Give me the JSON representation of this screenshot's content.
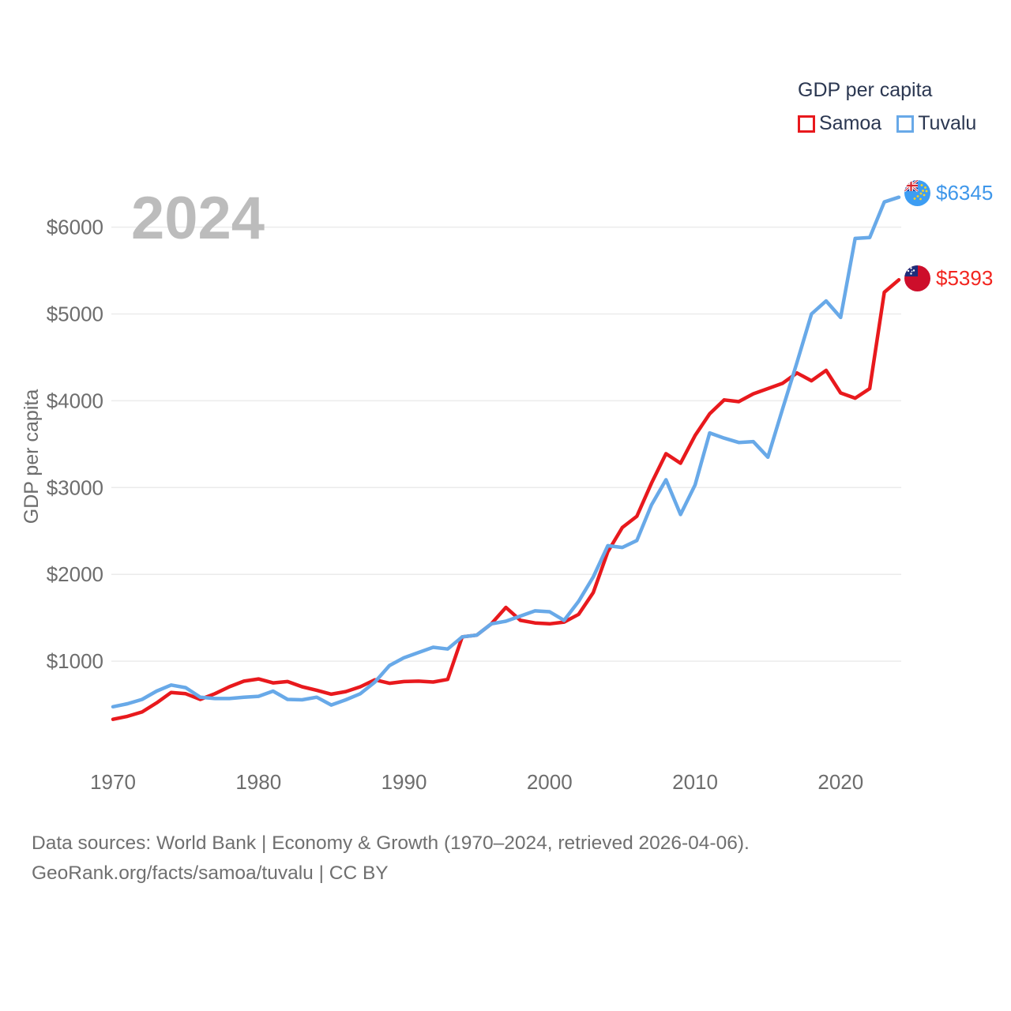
{
  "legend": {
    "title": "GDP per capita",
    "items": [
      {
        "label": "Samoa",
        "color": "#e8191d"
      },
      {
        "label": "Tuvalu",
        "color": "#68a9e8"
      }
    ]
  },
  "watermark": {
    "text": "2024",
    "color": "#bcbcbc"
  },
  "end_labels": [
    {
      "series": "Tuvalu",
      "value": "$6345",
      "color": "#3f97ea",
      "flag": "tuvalu-flag"
    },
    {
      "series": "Samoa",
      "value": "$5393",
      "color": "#f2251f",
      "flag": "samoa-flag"
    }
  ],
  "footer": {
    "line1": "Data sources: World Bank | Economy & Growth (1970–2024, retrieved 2026-04-06).",
    "line2": "GeoRank.org/facts/samoa/tuvalu | CC BY"
  },
  "chart_data": {
    "type": "line",
    "title": "GDP per capita",
    "xlabel": "",
    "ylabel": "GDP per capita",
    "grid": true,
    "grid_color": "#ebebeb",
    "axis_text_color": "#6d6d6d",
    "xlim": [
      1970,
      2024
    ],
    "ylim": [
      0,
      6600
    ],
    "xticks": [
      1970,
      1980,
      1990,
      2000,
      2010,
      2020
    ],
    "yticks": [
      {
        "value": 1000,
        "label": "$1000"
      },
      {
        "value": 2000,
        "label": "$2000"
      },
      {
        "value": 3000,
        "label": "$3000"
      },
      {
        "value": 4000,
        "label": "$4000"
      },
      {
        "value": 5000,
        "label": "$5000"
      },
      {
        "value": 6000,
        "label": "$6000"
      }
    ],
    "x": [
      1970,
      1971,
      1972,
      1973,
      1974,
      1975,
      1976,
      1977,
      1978,
      1979,
      1980,
      1981,
      1982,
      1983,
      1984,
      1985,
      1986,
      1987,
      1988,
      1989,
      1990,
      1991,
      1992,
      1993,
      1994,
      1995,
      1996,
      1997,
      1998,
      1999,
      2000,
      2001,
      2002,
      2003,
      2004,
      2005,
      2006,
      2007,
      2008,
      2009,
      2010,
      2011,
      2012,
      2013,
      2014,
      2015,
      2016,
      2017,
      2018,
      2019,
      2020,
      2021,
      2022,
      2023,
      2024
    ],
    "series": [
      {
        "name": "Samoa",
        "color": "#e8191d",
        "values": [
          330,
          365,
          415,
          520,
          640,
          625,
          560,
          625,
          705,
          770,
          795,
          750,
          765,
          705,
          665,
          620,
          650,
          705,
          785,
          745,
          765,
          770,
          760,
          790,
          1280,
          1300,
          1430,
          1620,
          1470,
          1440,
          1430,
          1450,
          1540,
          1790,
          2260,
          2540,
          2670,
          3050,
          3390,
          3280,
          3600,
          3850,
          4010,
          3990,
          4080,
          4140,
          4200,
          4320,
          4230,
          4350,
          4090,
          4030,
          4140,
          5250,
          5393
        ]
      },
      {
        "name": "Tuvalu",
        "color": "#68a9e8",
        "values": [
          475,
          510,
          560,
          655,
          725,
          695,
          585,
          570,
          570,
          585,
          595,
          655,
          560,
          555,
          585,
          495,
          555,
          625,
          760,
          950,
          1040,
          1100,
          1160,
          1140,
          1280,
          1300,
          1430,
          1460,
          1520,
          1580,
          1570,
          1470,
          1690,
          1970,
          2330,
          2310,
          2390,
          2800,
          3090,
          2690,
          3030,
          3630,
          3570,
          3520,
          3530,
          3350,
          3900,
          4440,
          5000,
          5150,
          4960,
          5870,
          5880,
          6290,
          6345
        ]
      }
    ]
  }
}
